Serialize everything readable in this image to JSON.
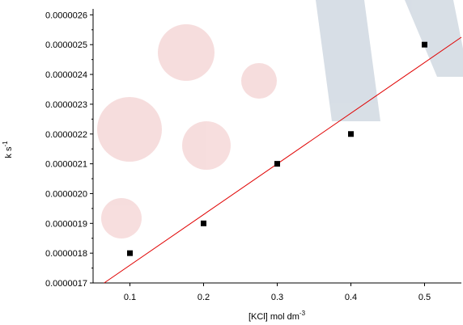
{
  "chart_data": {
    "type": "scatter",
    "x_label": "[KCl] mol dm",
    "x_label_sup": "-3",
    "y_label": "k s",
    "y_label_sup": "-1",
    "x": [
      0.1,
      0.2,
      0.3,
      0.4,
      0.5
    ],
    "values": [
      1.8e-06,
      1.9e-06,
      2.1e-06,
      2.2e-06,
      2.5e-06
    ],
    "color": "#000000",
    "trendline": {
      "color": "#e00000",
      "x": [
        0.065,
        0.55
      ],
      "values": [
        1.7e-06,
        2.525e-06
      ]
    },
    "xlim": [
      0.05,
      0.55
    ],
    "ylim": [
      1.7e-06,
      2.62e-06
    ],
    "xticks": [
      0.1,
      0.2,
      0.3,
      0.4,
      0.5
    ],
    "yticks": [
      {
        "value": 1.7e-06,
        "label": "0.0000017"
      },
      {
        "value": 1.8e-06,
        "label": "0.0000018"
      },
      {
        "value": 1.9e-06,
        "label": "0.0000019"
      },
      {
        "value": 2e-06,
        "label": "0.0000020"
      },
      {
        "value": 2.1e-06,
        "label": "0.0000021"
      },
      {
        "value": 2.2e-06,
        "label": "0.0000022"
      },
      {
        "value": 2.3e-06,
        "label": "0.0000023"
      },
      {
        "value": 2.4e-06,
        "label": "0.0000024"
      },
      {
        "value": 2.5e-06,
        "label": "0.0000025"
      },
      {
        "value": 2.6e-06,
        "label": "0.0000026"
      }
    ]
  }
}
